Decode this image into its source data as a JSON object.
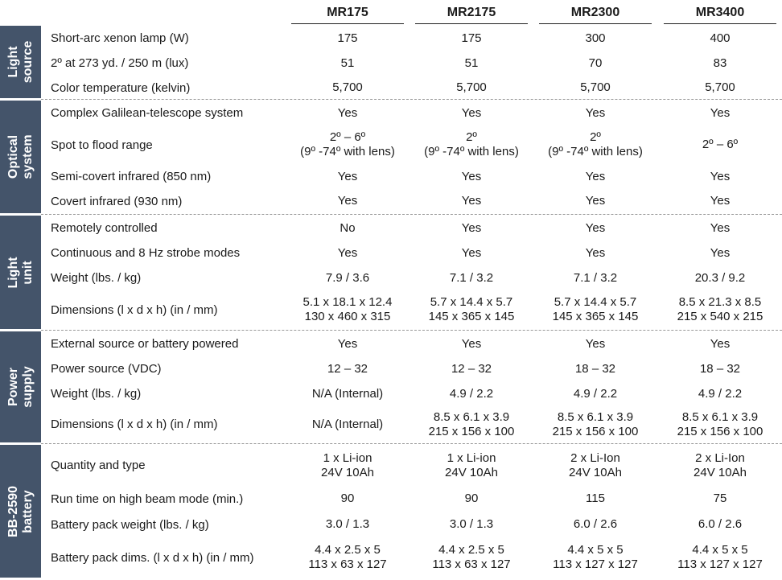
{
  "header": {
    "columns": [
      "MR175",
      "MR2175",
      "MR2300",
      "MR3400"
    ]
  },
  "sections": [
    {
      "name": "Light\nsource",
      "rows": [
        {
          "label": "Short-arc xenon lamp (W)",
          "values": [
            [
              "175"
            ],
            [
              "175"
            ],
            [
              "300"
            ],
            [
              "400"
            ]
          ]
        },
        {
          "label": "2º at 273 yd. / 250 m (lux)",
          "values": [
            [
              "51"
            ],
            [
              "51"
            ],
            [
              "70"
            ],
            [
              "83"
            ]
          ]
        },
        {
          "label": "Color temperature (kelvin)",
          "values": [
            [
              "5,700"
            ],
            [
              "5,700"
            ],
            [
              "5,700"
            ],
            [
              "5,700"
            ]
          ]
        }
      ]
    },
    {
      "name": "Optical\nsystem",
      "rows": [
        {
          "label": "Complex Galilean-telescope system",
          "values": [
            [
              "Yes"
            ],
            [
              "Yes"
            ],
            [
              "Yes"
            ],
            [
              "Yes"
            ]
          ]
        },
        {
          "label": "Spot to flood range",
          "values": [
            [
              "2º – 6º",
              "(9º -74º with lens)"
            ],
            [
              "2º",
              "(9º -74º with lens)"
            ],
            [
              "2º",
              "(9º -74º with lens)"
            ],
            [
              "2º – 6º"
            ]
          ]
        },
        {
          "label": "Semi-covert infrared (850 nm)",
          "values": [
            [
              "Yes"
            ],
            [
              "Yes"
            ],
            [
              "Yes"
            ],
            [
              "Yes"
            ]
          ]
        },
        {
          "label": "Covert infrared (930 nm)",
          "values": [
            [
              "Yes"
            ],
            [
              "Yes"
            ],
            [
              "Yes"
            ],
            [
              "Yes"
            ]
          ]
        }
      ]
    },
    {
      "name": "Light\nunit",
      "rows": [
        {
          "label": "Remotely controlled",
          "values": [
            [
              "No"
            ],
            [
              "Yes"
            ],
            [
              "Yes"
            ],
            [
              "Yes"
            ]
          ]
        },
        {
          "label": "Continuous and 8 Hz strobe modes",
          "values": [
            [
              "Yes"
            ],
            [
              "Yes"
            ],
            [
              "Yes"
            ],
            [
              "Yes"
            ]
          ]
        },
        {
          "label": "Weight (lbs. / kg)",
          "values": [
            [
              "7.9 / 3.6"
            ],
            [
              "7.1 / 3.2"
            ],
            [
              "7.1 / 3.2"
            ],
            [
              "20.3 / 9.2"
            ]
          ]
        },
        {
          "label": "Dimensions  (l x d x h) (in / mm)",
          "values": [
            [
              "5.1 x 18.1 x 12.4",
              "130 x 460 x 315"
            ],
            [
              "5.7 x 14.4 x 5.7",
              "145 x 365 x 145"
            ],
            [
              "5.7 x 14.4 x 5.7",
              "145 x 365 x 145"
            ],
            [
              "8.5 x 21.3 x 8.5",
              "215 x 540 x 215"
            ]
          ]
        }
      ]
    },
    {
      "name": "Power\nsupply",
      "rows": [
        {
          "label": "External source or battery powered",
          "values": [
            [
              "Yes"
            ],
            [
              "Yes"
            ],
            [
              "Yes"
            ],
            [
              "Yes"
            ]
          ]
        },
        {
          "label": "Power source (VDC)",
          "values": [
            [
              "12 – 32"
            ],
            [
              "12 – 32"
            ],
            [
              "18 – 32"
            ],
            [
              "18 – 32"
            ]
          ]
        },
        {
          "label": "Weight (lbs. / kg)",
          "values": [
            [
              "N/A (Internal)"
            ],
            [
              "4.9 / 2.2"
            ],
            [
              "4.9 / 2.2"
            ],
            [
              "4.9 / 2.2"
            ]
          ]
        },
        {
          "label": "Dimensions  (l x d x h) (in / mm)",
          "values": [
            [
              "N/A (Internal)"
            ],
            [
              "8.5 x 6.1 x 3.9",
              "215 x 156 x 100"
            ],
            [
              "8.5 x 6.1 x 3.9",
              "215 x 156 x 100"
            ],
            [
              "8.5 x 6.1 x 3.9",
              "215 x 156 x 100"
            ]
          ]
        }
      ]
    },
    {
      "name": "BB-2590\nbattery",
      "rows": [
        {
          "label": "Quantity and type",
          "values": [
            [
              "1 x Li-ion",
              "24V 10Ah"
            ],
            [
              "1 x Li-ion",
              "24V 10Ah"
            ],
            [
              "2 x Li-Ion",
              "24V 10Ah"
            ],
            [
              "2 x Li-Ion",
              "24V 10Ah"
            ]
          ]
        },
        {
          "label": "Run time on high beam mode (min.)",
          "values": [
            [
              "90"
            ],
            [
              "90"
            ],
            [
              "115"
            ],
            [
              "75"
            ]
          ]
        },
        {
          "label": "Battery pack weight (lbs. / kg)",
          "values": [
            [
              "3.0 / 1.3"
            ],
            [
              "3.0 / 1.3"
            ],
            [
              "6.0 / 2.6"
            ],
            [
              "6.0 / 2.6"
            ]
          ]
        },
        {
          "label": "Battery pack dims. (l x d x h) (in / mm)",
          "values": [
            [
              "4.4 x 2.5 x 5",
              "113 x 63 x 127"
            ],
            [
              "4.4 x 2.5 x 5",
              "113 x 63 x 127"
            ],
            [
              "4.4 x 5 x 5",
              "113 x 127 x 127"
            ],
            [
              "4.4 x 5 x 5",
              "113 x 127 x 127"
            ]
          ]
        }
      ]
    }
  ]
}
